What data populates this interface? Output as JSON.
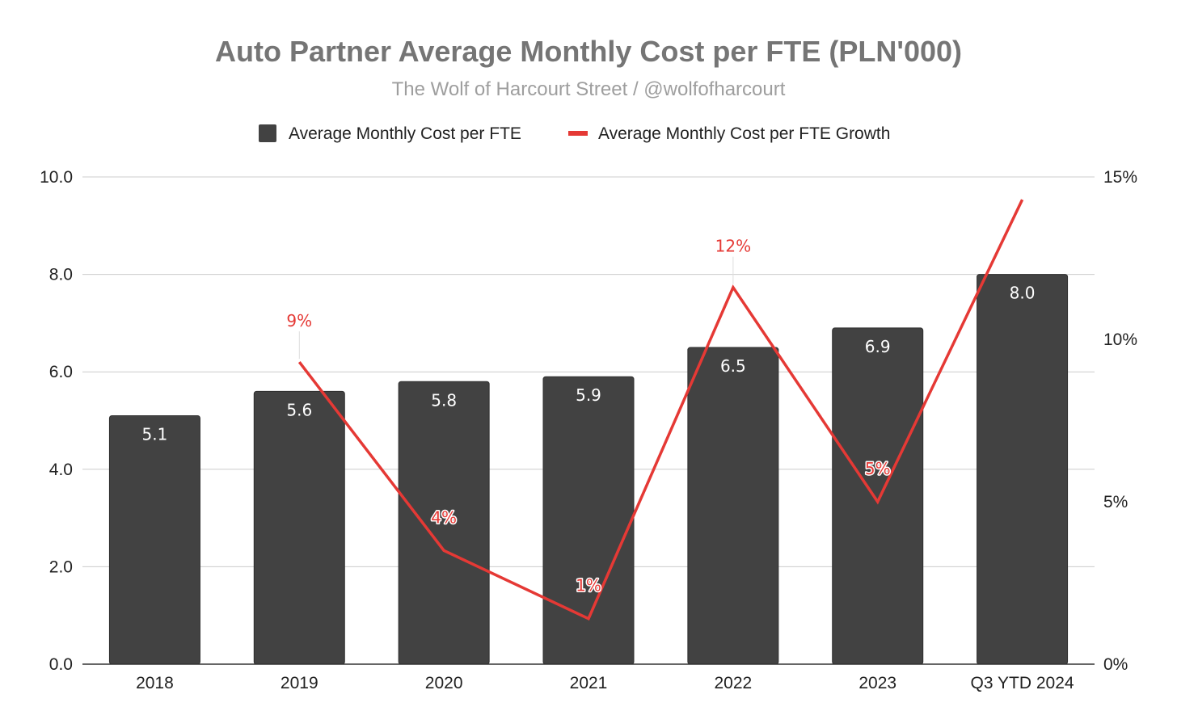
{
  "chart_data": {
    "type": "bar",
    "title": "Auto Partner Average Monthly Cost per FTE (PLN'000)",
    "subtitle": "The Wolf of Harcourt Street / @wolfofharcourt",
    "categories": [
      "2018",
      "2019",
      "2020",
      "2021",
      "2022",
      "2023",
      "Q3 YTD 2024"
    ],
    "series": [
      {
        "name": "Average Monthly Cost per FTE",
        "type": "bar",
        "axis": "left",
        "color": "#424242",
        "values": [
          5.1,
          5.6,
          5.8,
          5.9,
          6.5,
          6.9,
          8.0
        ],
        "labels": [
          "5.1",
          "5.6",
          "5.8",
          "5.9",
          "6.5",
          "6.9",
          "8.0"
        ]
      },
      {
        "name": "Average Monthly Cost per FTE Growth",
        "type": "line",
        "axis": "right",
        "color": "#e53935",
        "values": [
          null,
          9.3,
          3.5,
          1.4,
          11.6,
          5.0,
          14.3
        ],
        "labels": [
          null,
          "9%",
          "4%",
          "1%",
          "12%",
          "5%",
          null
        ]
      }
    ],
    "y_left": {
      "min": 0,
      "max": 10,
      "ticks": [
        0,
        2,
        4,
        6,
        8,
        10
      ],
      "tick_labels": [
        "0.0",
        "2.0",
        "4.0",
        "6.0",
        "8.0",
        "10.0"
      ]
    },
    "y_right": {
      "min": 0,
      "max": 15,
      "ticks": [
        0,
        5,
        10,
        15
      ],
      "tick_labels": [
        "0%",
        "5%",
        "10%",
        "15%"
      ]
    },
    "legend_position": "top-center",
    "grid": true
  }
}
